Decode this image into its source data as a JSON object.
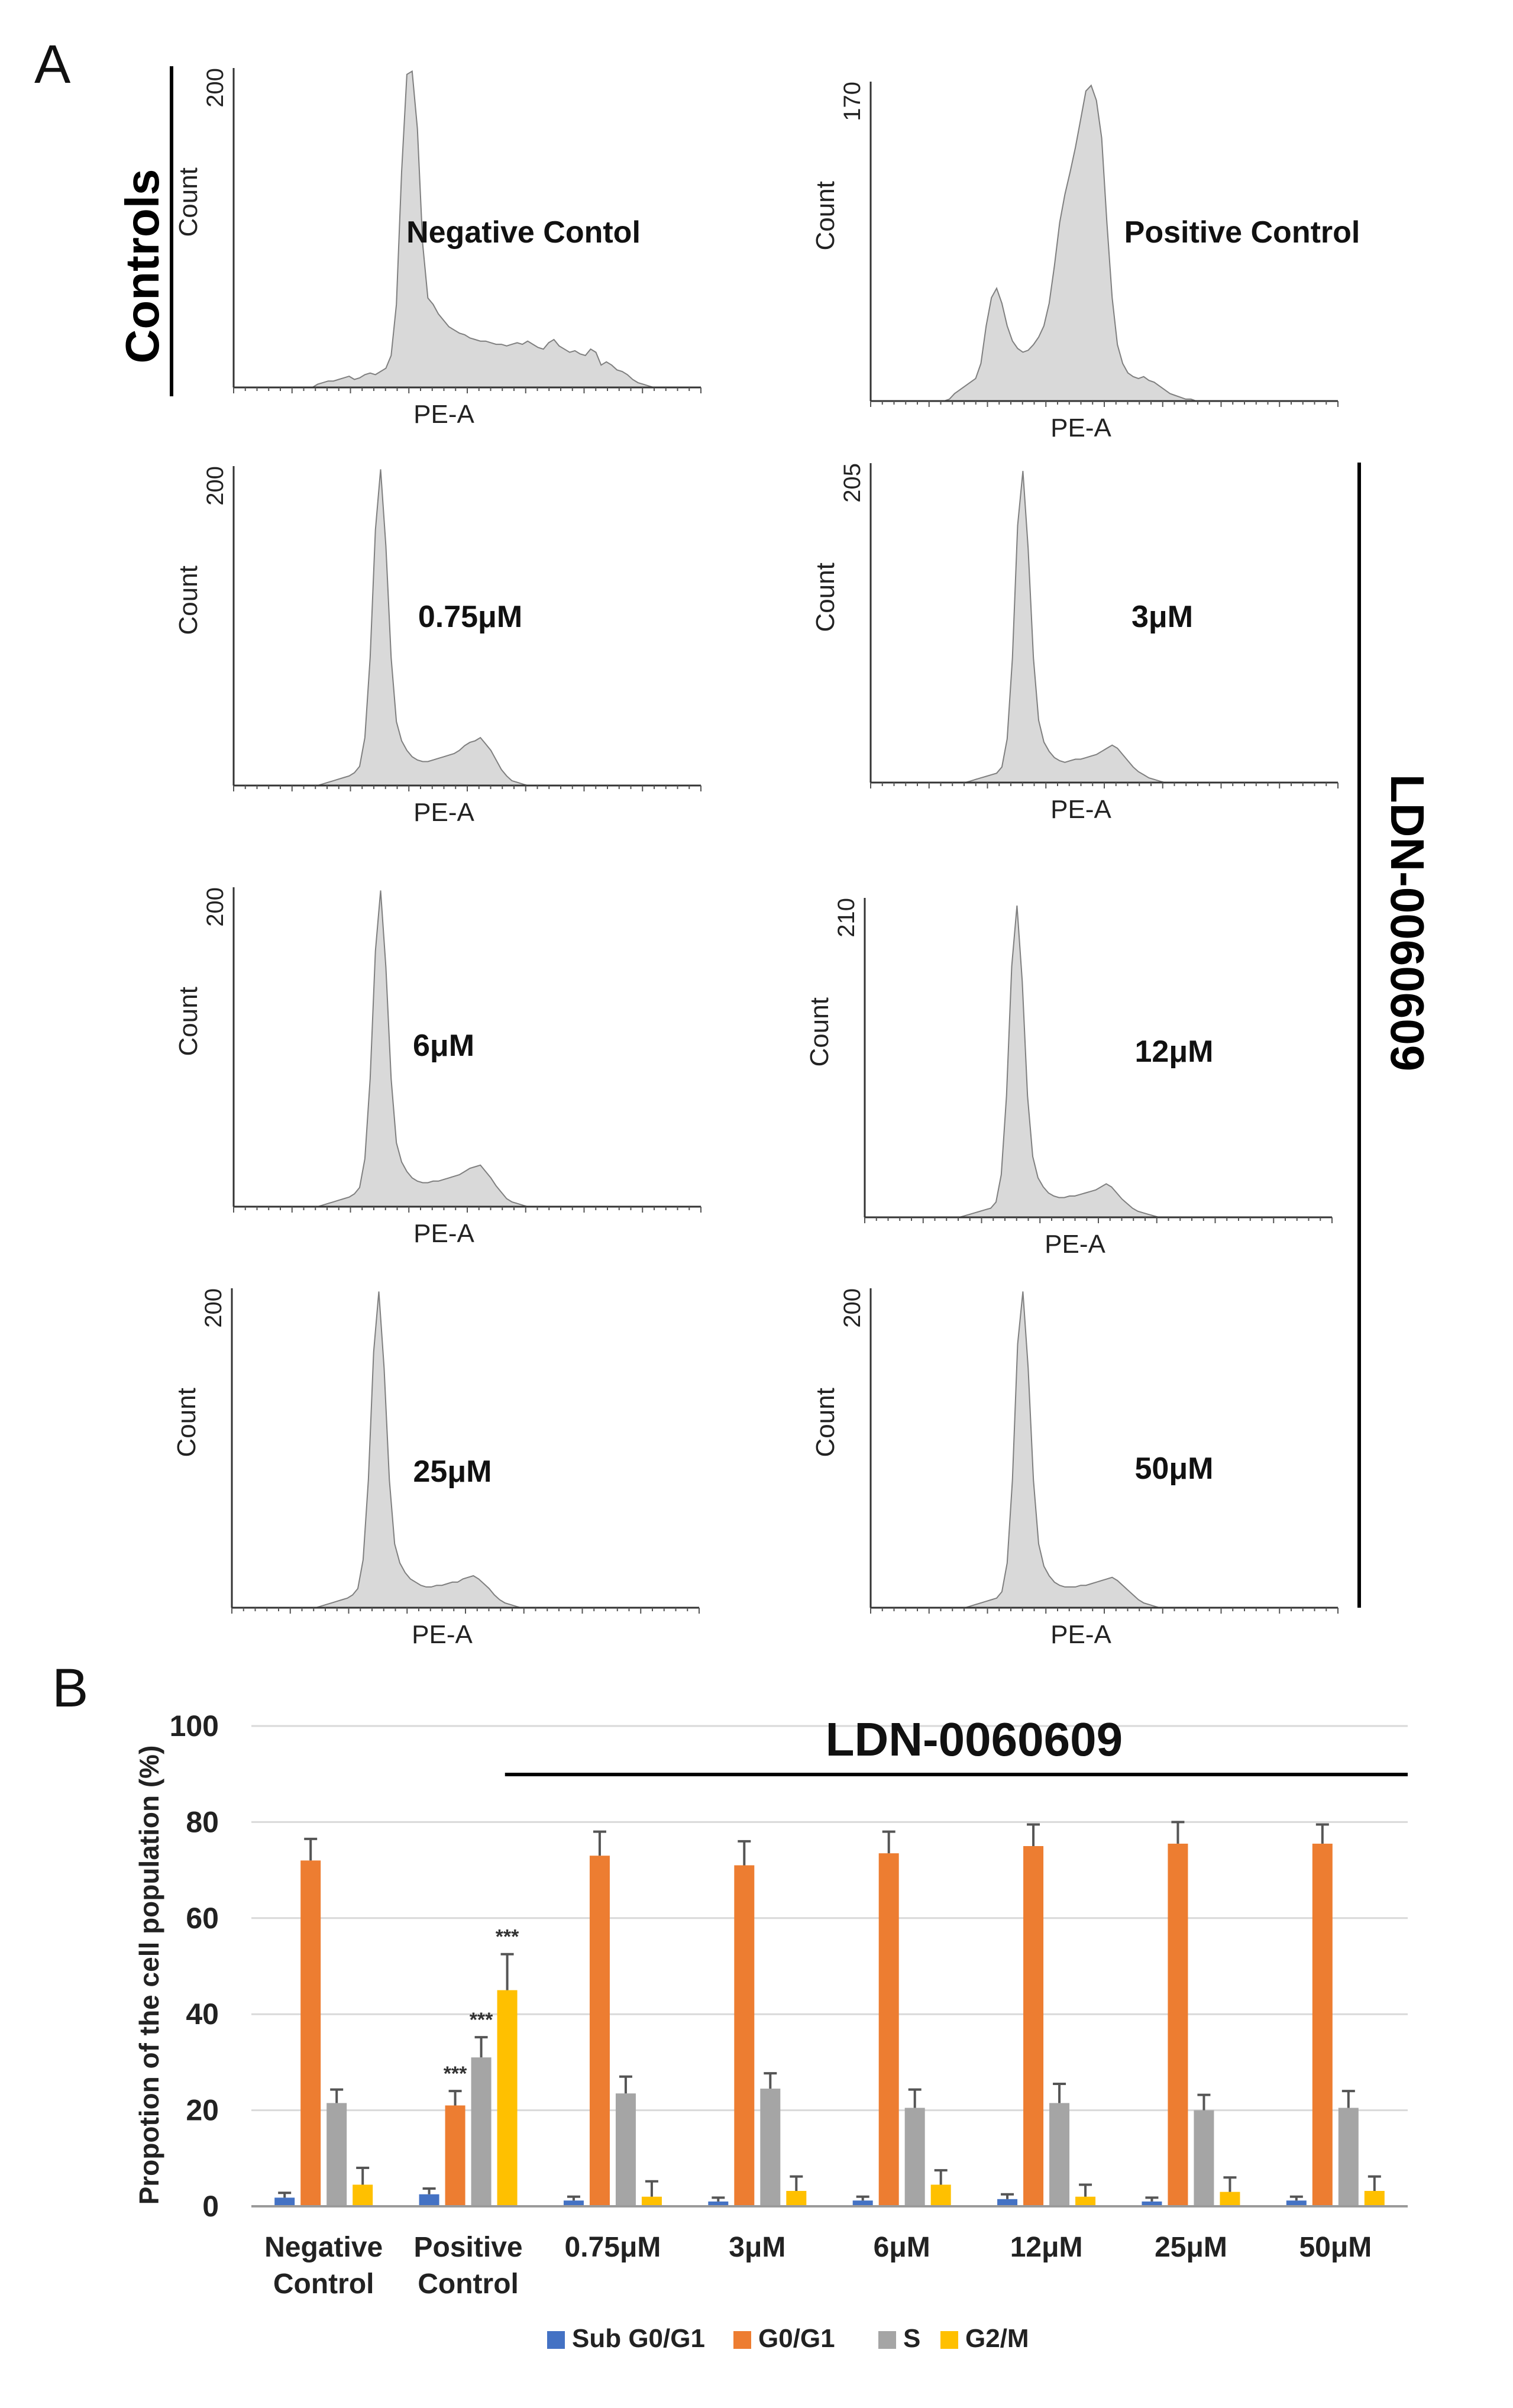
{
  "panel_a_label": "A",
  "panel_b_label": "B",
  "controls_label": "Controls",
  "treatment_label": "LDN-0060609",
  "chart_data": [
    {
      "type": "area",
      "panel": "A",
      "histograms": [
        {
          "label": "Negative Contol",
          "ymax": 200,
          "xlabel": "PE-A",
          "ylabel": "Count",
          "profile": [
            0,
            0,
            0,
            0,
            0,
            0,
            0,
            0,
            0,
            0,
            0,
            0,
            0,
            0,
            0,
            0,
            2,
            3,
            4,
            4,
            5,
            6,
            7,
            5,
            6,
            8,
            9,
            8,
            10,
            12,
            20,
            52,
            135,
            196,
            198,
            162,
            90,
            56,
            52,
            46,
            42,
            38,
            36,
            34,
            33,
            31,
            30,
            29,
            29,
            28,
            27,
            27,
            26,
            27,
            28,
            27,
            29,
            27,
            25,
            24,
            28,
            30,
            26,
            24,
            22,
            23,
            21,
            20,
            24,
            22,
            14,
            16,
            14,
            11,
            10,
            8,
            5,
            3,
            2,
            1,
            0,
            0,
            0,
            0,
            0,
            0,
            0,
            0,
            0,
            0
          ]
        },
        {
          "label": "Positive Control",
          "ymax": 170,
          "xlabel": "PE-A",
          "ylabel": "Count",
          "profile": [
            0,
            0,
            0,
            0,
            0,
            0,
            0,
            0,
            0,
            0,
            0,
            0,
            0,
            0,
            0,
            1,
            4,
            6,
            8,
            10,
            12,
            20,
            40,
            55,
            60,
            52,
            40,
            32,
            28,
            26,
            27,
            30,
            34,
            40,
            52,
            72,
            95,
            110,
            122,
            135,
            150,
            165,
            168,
            160,
            140,
            95,
            55,
            30,
            20,
            15,
            13,
            12,
            13,
            11,
            10,
            8,
            6,
            4,
            3,
            2,
            1,
            1,
            0,
            0,
            0,
            0,
            0,
            0,
            0,
            0,
            0,
            0,
            0,
            0,
            0,
            0,
            0,
            0,
            0,
            0,
            0,
            0,
            0,
            0,
            0,
            0,
            0,
            0,
            0,
            0
          ]
        },
        {
          "label": "0.75μM",
          "ymax": 200,
          "xlabel": "PE-A",
          "ylabel": "Count",
          "profile": [
            0,
            0,
            0,
            0,
            0,
            0,
            0,
            0,
            0,
            0,
            0,
            0,
            0,
            0,
            0,
            0,
            0,
            1,
            2,
            3,
            4,
            5,
            6,
            8,
            12,
            30,
            80,
            160,
            198,
            150,
            80,
            40,
            28,
            22,
            18,
            16,
            15,
            15,
            16,
            17,
            18,
            19,
            20,
            22,
            25,
            27,
            28,
            30,
            26,
            22,
            16,
            10,
            6,
            3,
            2,
            1,
            0,
            0,
            0,
            0,
            0,
            0,
            0,
            0,
            0,
            0,
            0,
            0,
            0,
            0,
            0,
            0,
            0,
            0,
            0,
            0,
            0,
            0,
            0,
            0,
            0,
            0,
            0,
            0,
            0,
            0,
            0,
            0,
            0,
            0
          ]
        },
        {
          "label": "3μM",
          "ymax": 205,
          "xlabel": "PE-A",
          "ylabel": "Count",
          "profile": [
            0,
            0,
            0,
            0,
            0,
            0,
            0,
            0,
            0,
            0,
            0,
            0,
            0,
            0,
            0,
            0,
            0,
            0,
            0,
            1,
            2,
            3,
            4,
            5,
            6,
            10,
            28,
            80,
            165,
            200,
            150,
            80,
            40,
            26,
            20,
            16,
            14,
            13,
            14,
            15,
            15,
            16,
            17,
            18,
            20,
            22,
            24,
            22,
            18,
            14,
            10,
            7,
            5,
            3,
            2,
            1,
            0,
            0,
            0,
            0,
            0,
            0,
            0,
            0,
            0,
            0,
            0,
            0,
            0,
            0,
            0,
            0,
            0,
            0,
            0,
            0,
            0,
            0,
            0,
            0,
            0,
            0,
            0,
            0,
            0,
            0,
            0,
            0,
            0,
            0
          ]
        },
        {
          "label": "6μM",
          "ymax": 200,
          "xlabel": "PE-A",
          "ylabel": "Count",
          "profile": [
            0,
            0,
            0,
            0,
            0,
            0,
            0,
            0,
            0,
            0,
            0,
            0,
            0,
            0,
            0,
            0,
            0,
            1,
            2,
            3,
            4,
            5,
            6,
            8,
            12,
            30,
            80,
            160,
            198,
            150,
            80,
            40,
            28,
            22,
            18,
            16,
            15,
            15,
            16,
            16,
            17,
            18,
            19,
            20,
            22,
            24,
            25,
            26,
            22,
            18,
            13,
            9,
            5,
            3,
            2,
            1,
            0,
            0,
            0,
            0,
            0,
            0,
            0,
            0,
            0,
            0,
            0,
            0,
            0,
            0,
            0,
            0,
            0,
            0,
            0,
            0,
            0,
            0,
            0,
            0,
            0,
            0,
            0,
            0,
            0,
            0,
            0,
            0,
            0,
            0
          ]
        },
        {
          "label": "12μM",
          "ymax": 210,
          "xlabel": "PE-A",
          "ylabel": "Count",
          "profile": [
            0,
            0,
            0,
            0,
            0,
            0,
            0,
            0,
            0,
            0,
            0,
            0,
            0,
            0,
            0,
            0,
            0,
            0,
            0,
            1,
            2,
            3,
            4,
            5,
            6,
            10,
            28,
            80,
            165,
            205,
            155,
            80,
            40,
            26,
            20,
            16,
            14,
            13,
            13,
            14,
            14,
            15,
            16,
            17,
            18,
            20,
            22,
            20,
            16,
            12,
            9,
            6,
            4,
            3,
            2,
            1,
            0,
            0,
            0,
            0,
            0,
            0,
            0,
            0,
            0,
            0,
            0,
            0,
            0,
            0,
            0,
            0,
            0,
            0,
            0,
            0,
            0,
            0,
            0,
            0,
            0,
            0,
            0,
            0,
            0,
            0,
            0,
            0,
            0,
            0
          ]
        },
        {
          "label": "25μM",
          "ymax": 200,
          "xlabel": "PE-A",
          "ylabel": "Count",
          "profile": [
            0,
            0,
            0,
            0,
            0,
            0,
            0,
            0,
            0,
            0,
            0,
            0,
            0,
            0,
            0,
            0,
            0,
            1,
            2,
            3,
            4,
            5,
            6,
            8,
            12,
            30,
            80,
            160,
            198,
            150,
            80,
            40,
            28,
            22,
            18,
            16,
            14,
            13,
            13,
            14,
            14,
            15,
            16,
            16,
            18,
            19,
            20,
            18,
            15,
            12,
            8,
            5,
            3,
            2,
            1,
            0,
            0,
            0,
            0,
            0,
            0,
            0,
            0,
            0,
            0,
            0,
            0,
            0,
            0,
            0,
            0,
            0,
            0,
            0,
            0,
            0,
            0,
            0,
            0,
            0,
            0,
            0,
            0,
            0,
            0,
            0,
            0,
            0,
            0,
            0
          ]
        },
        {
          "label": "50μM",
          "ymax": 200,
          "xlabel": "PE-A",
          "ylabel": "Count",
          "profile": [
            0,
            0,
            0,
            0,
            0,
            0,
            0,
            0,
            0,
            0,
            0,
            0,
            0,
            0,
            0,
            0,
            0,
            0,
            0,
            1,
            2,
            3,
            4,
            5,
            6,
            10,
            28,
            80,
            165,
            198,
            150,
            80,
            40,
            26,
            20,
            16,
            14,
            13,
            13,
            13,
            14,
            14,
            15,
            16,
            17,
            18,
            19,
            17,
            14,
            11,
            8,
            5,
            3,
            2,
            1,
            0,
            0,
            0,
            0,
            0,
            0,
            0,
            0,
            0,
            0,
            0,
            0,
            0,
            0,
            0,
            0,
            0,
            0,
            0,
            0,
            0,
            0,
            0,
            0,
            0,
            0,
            0,
            0,
            0,
            0,
            0,
            0,
            0,
            0,
            0
          ]
        }
      ]
    },
    {
      "type": "bar",
      "panel": "B",
      "ylabel": "Propotion of the cell population (%)",
      "ylim": [
        0,
        100
      ],
      "yticks": [
        "0",
        "20",
        "40",
        "60",
        "80",
        "100"
      ],
      "grid": true,
      "legend_position": "bottom",
      "categories": [
        "Negative Control",
        "Positive Control",
        "0.75μM",
        "3μM",
        "6μM",
        "12μM",
        "25μM",
        "50μM"
      ],
      "treatment_bar_label": "LDN-0060609",
      "significance_mark": "***",
      "series": [
        {
          "name": "Sub G0/G1",
          "color": "#4472C4",
          "values": [
            1.8,
            2.5,
            1.2,
            1.0,
            1.2,
            1.5,
            1.0,
            1.2
          ],
          "errors": [
            1.0,
            1.2,
            0.8,
            0.8,
            0.8,
            1.0,
            0.8,
            0.8
          ],
          "significance": [
            false,
            false,
            false,
            false,
            false,
            false,
            false,
            false
          ]
        },
        {
          "name": "G0/G1",
          "color": "#ED7D31",
          "values": [
            72,
            21,
            73,
            71,
            73.5,
            75,
            75.5,
            75.5
          ],
          "errors": [
            4.5,
            3.0,
            5.0,
            5.0,
            4.5,
            4.5,
            4.5,
            4.0
          ],
          "significance": [
            false,
            true,
            false,
            false,
            false,
            false,
            false,
            false
          ]
        },
        {
          "name": "S",
          "color": "#A5A5A5",
          "values": [
            21.5,
            31,
            23.5,
            24.5,
            20.5,
            21.5,
            20,
            20.5
          ],
          "errors": [
            2.8,
            4.2,
            3.5,
            3.2,
            3.8,
            4.0,
            3.2,
            3.5
          ],
          "significance": [
            false,
            true,
            false,
            false,
            false,
            false,
            false,
            false
          ]
        },
        {
          "name": "G2/M",
          "color": "#FFC000",
          "values": [
            4.5,
            45,
            2.0,
            3.2,
            4.5,
            2.0,
            3.0,
            3.2
          ],
          "errors": [
            3.5,
            7.5,
            3.2,
            3.0,
            3.0,
            2.5,
            3.0,
            3.0
          ],
          "significance": [
            false,
            true,
            false,
            false,
            false,
            false,
            false,
            false
          ]
        }
      ]
    }
  ]
}
